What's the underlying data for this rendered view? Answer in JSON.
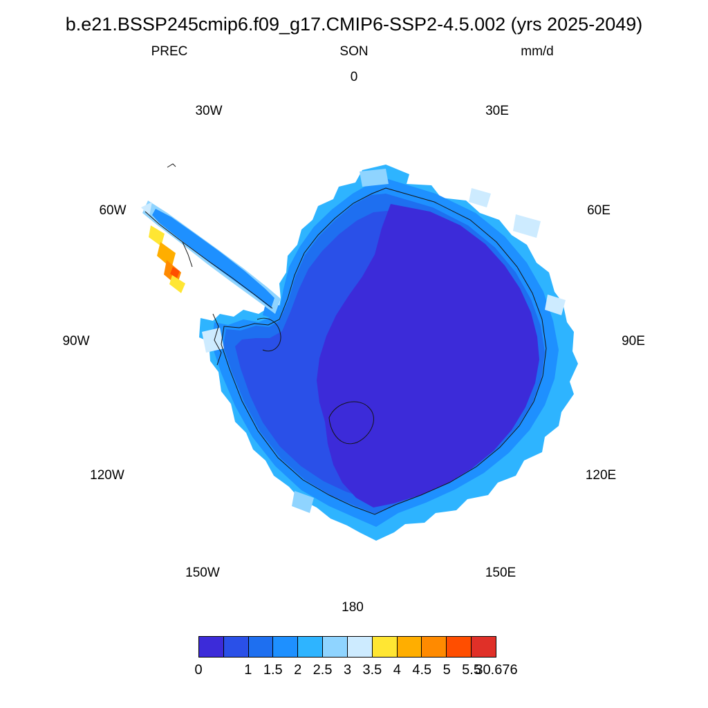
{
  "figure": {
    "title": "b.e21.BSSP245cmip6.f09_g17.CMIP6-SSP2-4.5.002 (yrs 2025-2049)",
    "variable_label": "PREC",
    "season_label": "SON",
    "units_label": "mm/d"
  },
  "map": {
    "lon_labels": [
      "0",
      "30W",
      "30E",
      "60W",
      "60E",
      "90W",
      "90E",
      "120W",
      "120E",
      "150W",
      "150E",
      "180"
    ]
  },
  "colorbar": {
    "ticks": [
      {
        "label": "0",
        "pos": 0
      },
      {
        "label": "1",
        "pos": 2
      },
      {
        "label": "1.5",
        "pos": 3
      },
      {
        "label": "2",
        "pos": 4
      },
      {
        "label": "2.5",
        "pos": 5
      },
      {
        "label": "3",
        "pos": 6
      },
      {
        "label": "3.5",
        "pos": 7
      },
      {
        "label": "4",
        "pos": 8
      },
      {
        "label": "4.5",
        "pos": 9
      },
      {
        "label": "5",
        "pos": 10
      },
      {
        "label": "5.5",
        "pos": 11
      },
      {
        "label": "30.676",
        "pos": 12
      }
    ]
  },
  "chart_data": {
    "type": "heatmap",
    "title": "b.e21.BSSP245cmip6.f09_g17.CMIP6-SSP2-4.5.002 (yrs 2025-2049)",
    "variable": "PREC",
    "season": "SON",
    "units": "mm/d",
    "projection": "south-polar stereographic map of Antarctica",
    "longitude_labels": [
      "0",
      "30W",
      "30E",
      "60W",
      "60E",
      "90W",
      "90E",
      "120W",
      "120E",
      "150W",
      "150E",
      "180"
    ],
    "levels": [
      0,
      0.5,
      1,
      1.5,
      2,
      2.5,
      3,
      3.5,
      4,
      4.5,
      5,
      5.5,
      30.676
    ],
    "palette": [
      "#3C2BD9",
      "#2A50E8",
      "#1E6FF0",
      "#1E90FF",
      "#2EB4FF",
      "#8FD4FF",
      "#CDEBFF",
      "#FFE633",
      "#FFAE00",
      "#FF8A00",
      "#FF4E00",
      "#E03028"
    ],
    "colorbar_tick_labels": [
      "0",
      "1",
      "1.5",
      "2",
      "2.5",
      "3",
      "3.5",
      "4",
      "4.5",
      "5",
      "5.5",
      "30.676"
    ],
    "pattern_summary": "Interior East Antarctic plateau precipitation below 0.5 mm/d (dark indigo core); values increase outward through 0.5-1 and 1-2 mm/d blue bands to 2-3.5 mm/d along the coastal margin (sky-blue to pale-blue cells); an isolated maximum of roughly 4 to 30.676 mm/d appears as yellow, orange and red cells on the western side of the Antarctic Peninsula."
  }
}
